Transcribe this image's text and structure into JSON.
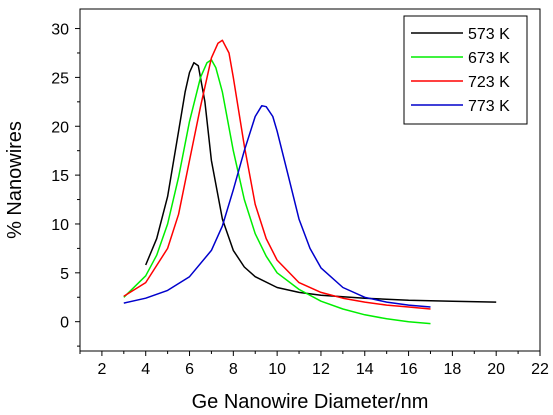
{
  "chart_data": {
    "type": "line",
    "xlabel": "Ge Nanowire Diameter/nm",
    "ylabel": "% Nanowires",
    "xlim": [
      1,
      22
    ],
    "ylim": [
      -3,
      32
    ],
    "xticks": [
      2,
      4,
      6,
      8,
      10,
      12,
      14,
      16,
      18,
      20,
      22
    ],
    "yticks": [
      0,
      5,
      10,
      15,
      20,
      25,
      30
    ],
    "grid": false,
    "legend_position": "top-right",
    "series": [
      {
        "name": "573 K",
        "color": "#000000",
        "x": [
          4.0,
          4.5,
          5.0,
          5.5,
          5.8,
          6.0,
          6.2,
          6.4,
          6.7,
          7.0,
          7.5,
          8.0,
          8.5,
          9.0,
          10.0,
          11.0,
          12.0,
          14.0,
          16.0,
          18.0,
          20.0
        ],
        "y": [
          5.8,
          8.5,
          12.8,
          19.5,
          23.5,
          25.5,
          26.5,
          26.2,
          22.5,
          16.5,
          10.5,
          7.3,
          5.6,
          4.6,
          3.5,
          3.0,
          2.7,
          2.4,
          2.2,
          2.1,
          2.0
        ]
      },
      {
        "name": "673 K",
        "color": "#00ee00",
        "x": [
          3.0,
          4.0,
          4.5,
          5.0,
          5.5,
          6.0,
          6.5,
          6.8,
          7.0,
          7.2,
          7.5,
          8.0,
          8.5,
          9.0,
          9.5,
          10.0,
          11.0,
          12.0,
          13.0,
          14.0,
          15.0,
          16.0,
          17.0
        ],
        "y": [
          2.5,
          4.7,
          6.8,
          10.0,
          14.8,
          20.5,
          25.0,
          26.5,
          26.8,
          26.0,
          23.5,
          17.5,
          12.5,
          9.0,
          6.7,
          5.0,
          3.3,
          2.1,
          1.3,
          0.7,
          0.3,
          0.0,
          -0.2
        ]
      },
      {
        "name": "723 K",
        "color": "#ff0000",
        "x": [
          3.0,
          4.0,
          5.0,
          5.5,
          6.0,
          6.5,
          7.0,
          7.3,
          7.5,
          7.8,
          8.0,
          8.5,
          9.0,
          9.5,
          10.0,
          11.0,
          12.0,
          13.0,
          14.0,
          15.0,
          16.0,
          17.0
        ],
        "y": [
          2.6,
          4.0,
          7.5,
          11.0,
          16.5,
          22.0,
          27.0,
          28.5,
          28.8,
          27.5,
          25.0,
          18.0,
          12.0,
          8.5,
          6.3,
          4.0,
          3.0,
          2.4,
          2.0,
          1.7,
          1.5,
          1.3
        ]
      },
      {
        "name": "773 K",
        "color": "#0000cc",
        "x": [
          3.0,
          4.0,
          5.0,
          6.0,
          7.0,
          7.5,
          8.0,
          8.5,
          9.0,
          9.3,
          9.5,
          9.8,
          10.0,
          10.5,
          11.0,
          11.5,
          12.0,
          13.0,
          14.0,
          15.0,
          16.0,
          17.0
        ],
        "y": [
          1.9,
          2.4,
          3.2,
          4.6,
          7.3,
          9.8,
          13.5,
          17.5,
          21.0,
          22.1,
          22.0,
          21.0,
          19.5,
          15.0,
          10.5,
          7.5,
          5.5,
          3.5,
          2.5,
          2.0,
          1.7,
          1.5
        ]
      }
    ]
  }
}
